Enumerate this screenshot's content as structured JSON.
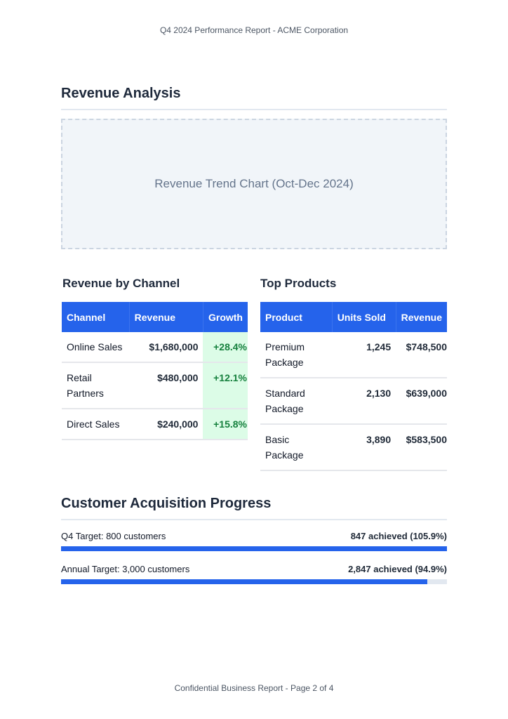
{
  "header": "Q4 2024 Performance Report - ACME Corporation",
  "revenue_analysis": {
    "title": "Revenue Analysis",
    "chart_placeholder": "Revenue Trend Chart (Oct-Dec 2024)"
  },
  "channel": {
    "title": "Revenue by Channel",
    "columns": [
      "Channel",
      "Revenue",
      "Growth"
    ],
    "rows": [
      [
        "Online Sales",
        "$1,680,000",
        "+28.4%"
      ],
      [
        "Retail Partners",
        "$480,000",
        "+12.1%"
      ],
      [
        "Direct Sales",
        "$240,000",
        "+15.8%"
      ]
    ]
  },
  "products": {
    "title": "Top Products",
    "columns": [
      "Product",
      "Units Sold",
      "Revenue"
    ],
    "rows": [
      [
        "Premium Package",
        "1,245",
        "$748,500"
      ],
      [
        "Standard Package",
        "2,130",
        "$639,000"
      ],
      [
        "Basic Package",
        "3,890",
        "$583,500"
      ]
    ]
  },
  "acquisition": {
    "title": "Customer Acquisition Progress",
    "items": [
      {
        "label": "Q4 Target: 800 customers",
        "value": "847 achieved (105.9%)",
        "percent": 105.9
      },
      {
        "label": "Annual Target: 3,000 customers",
        "value": "2,847 achieved (94.9%)",
        "percent": 94.9
      }
    ]
  },
  "colors": {
    "accent": "#2563eb",
    "growth": "#15803d",
    "growth_bg": "#dcfce7"
  },
  "footer": "Confidential Business Report - Page 2 of 4"
}
